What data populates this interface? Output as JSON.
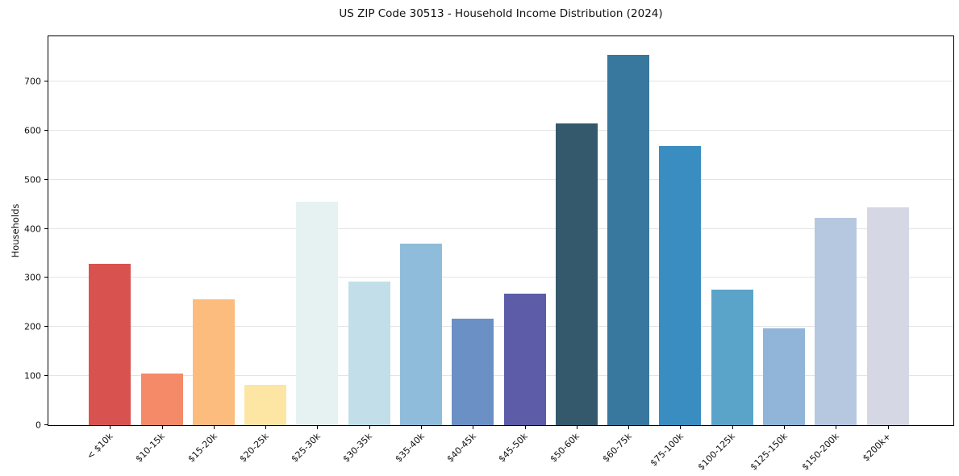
{
  "chart_data": {
    "type": "bar",
    "title": "US ZIP Code 30513 - Household Income Distribution (2024)",
    "xlabel": "",
    "ylabel": "Households",
    "categories": [
      "< $10k",
      "$10-15k",
      "$15-20k",
      "$20-25k",
      "$25-30k",
      "$30-35k",
      "$35-40k",
      "$40-45k",
      "$45-50k",
      "$50-60k",
      "$60-75k",
      "$75-100k",
      "$100-125k",
      "$125-150k",
      "$150-200k",
      "$200k+"
    ],
    "values": [
      328,
      105,
      256,
      82,
      455,
      293,
      370,
      217,
      268,
      614,
      754,
      569,
      276,
      198,
      422,
      444
    ],
    "bar_colors": [
      "#d8534f",
      "#f48a68",
      "#fbbc7d",
      "#fde6a4",
      "#e6f2f2",
      "#c2dfe9",
      "#90bcdb",
      "#6b90c5",
      "#5c5ca8",
      "#34596c",
      "#38789e",
      "#3a8dc1",
      "#5aa4c9",
      "#90b5d8",
      "#b6c8e0",
      "#d6d7e5"
    ],
    "y_ticks": [
      0,
      100,
      200,
      300,
      400,
      500,
      600,
      700
    ],
    "ylim": [
      0,
      792
    ],
    "grid": "horizontal-only",
    "grid_color": "#e4e4e4",
    "legend": "none"
  }
}
